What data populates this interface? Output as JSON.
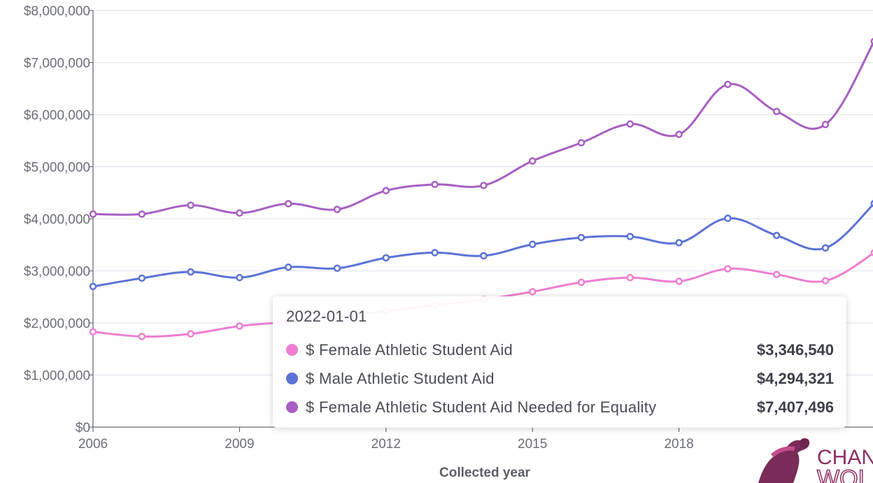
{
  "chart_data": {
    "type": "line",
    "xlabel": "Collected year",
    "ylabel": "",
    "x": [
      "2006",
      "2007",
      "2008",
      "2009",
      "2010",
      "2011",
      "2012",
      "2013",
      "2014",
      "2015",
      "2016",
      "2017",
      "2018",
      "2019",
      "2020",
      "2021",
      "2022"
    ],
    "x_ticks": [
      "2006",
      "2009",
      "2012",
      "2015",
      "2018"
    ],
    "y_ticks": [
      "$0",
      "$1,000,000",
      "$2,000,000",
      "$3,000,000",
      "$4,000,000",
      "$5,000,000",
      "$6,000,000",
      "$7,000,000",
      "$8,000,000"
    ],
    "ylim": [
      0,
      8000000
    ],
    "grid": true,
    "series": [
      {
        "name": "$ Female Athletic Student Aid",
        "color": "#ee7ed1",
        "values": [
          1830000,
          1740000,
          1790000,
          1940000,
          2020000,
          2120000,
          2230000,
          2340000,
          2450000,
          2600000,
          2780000,
          2870000,
          2800000,
          3040000,
          2930000,
          2810000,
          3346540
        ]
      },
      {
        "name": "$ Male Athletic Student Aid",
        "color": "#5b73d6",
        "values": [
          2700000,
          2860000,
          2980000,
          2870000,
          3070000,
          3050000,
          3250000,
          3350000,
          3290000,
          3510000,
          3640000,
          3660000,
          3540000,
          4010000,
          3680000,
          3440000,
          4294321
        ]
      },
      {
        "name": "$ Female Athletic Student Aid Needed for Equality",
        "color": "#a75fc3",
        "values": [
          4090000,
          4090000,
          4260000,
          4110000,
          4290000,
          4180000,
          4540000,
          4660000,
          4640000,
          5110000,
          5460000,
          5820000,
          5620000,
          6580000,
          6060000,
          5810000,
          7407496
        ]
      }
    ]
  },
  "tooltip": {
    "title": "2022-01-01",
    "rows": [
      {
        "name": "$ Female Athletic Student Aid",
        "value": "$3,346,540",
        "color": "#ee7ed1"
      },
      {
        "name": "$ Male Athletic Student Aid",
        "value": "$4,294,321",
        "color": "#5b73d6"
      },
      {
        "name": "$ Female Athletic Student Aid Needed for Equality",
        "value": "$7,407,496",
        "color": "#a75fc3"
      }
    ]
  },
  "logo": {
    "text_top": "CHAN",
    "text_bottom": "WOI"
  }
}
